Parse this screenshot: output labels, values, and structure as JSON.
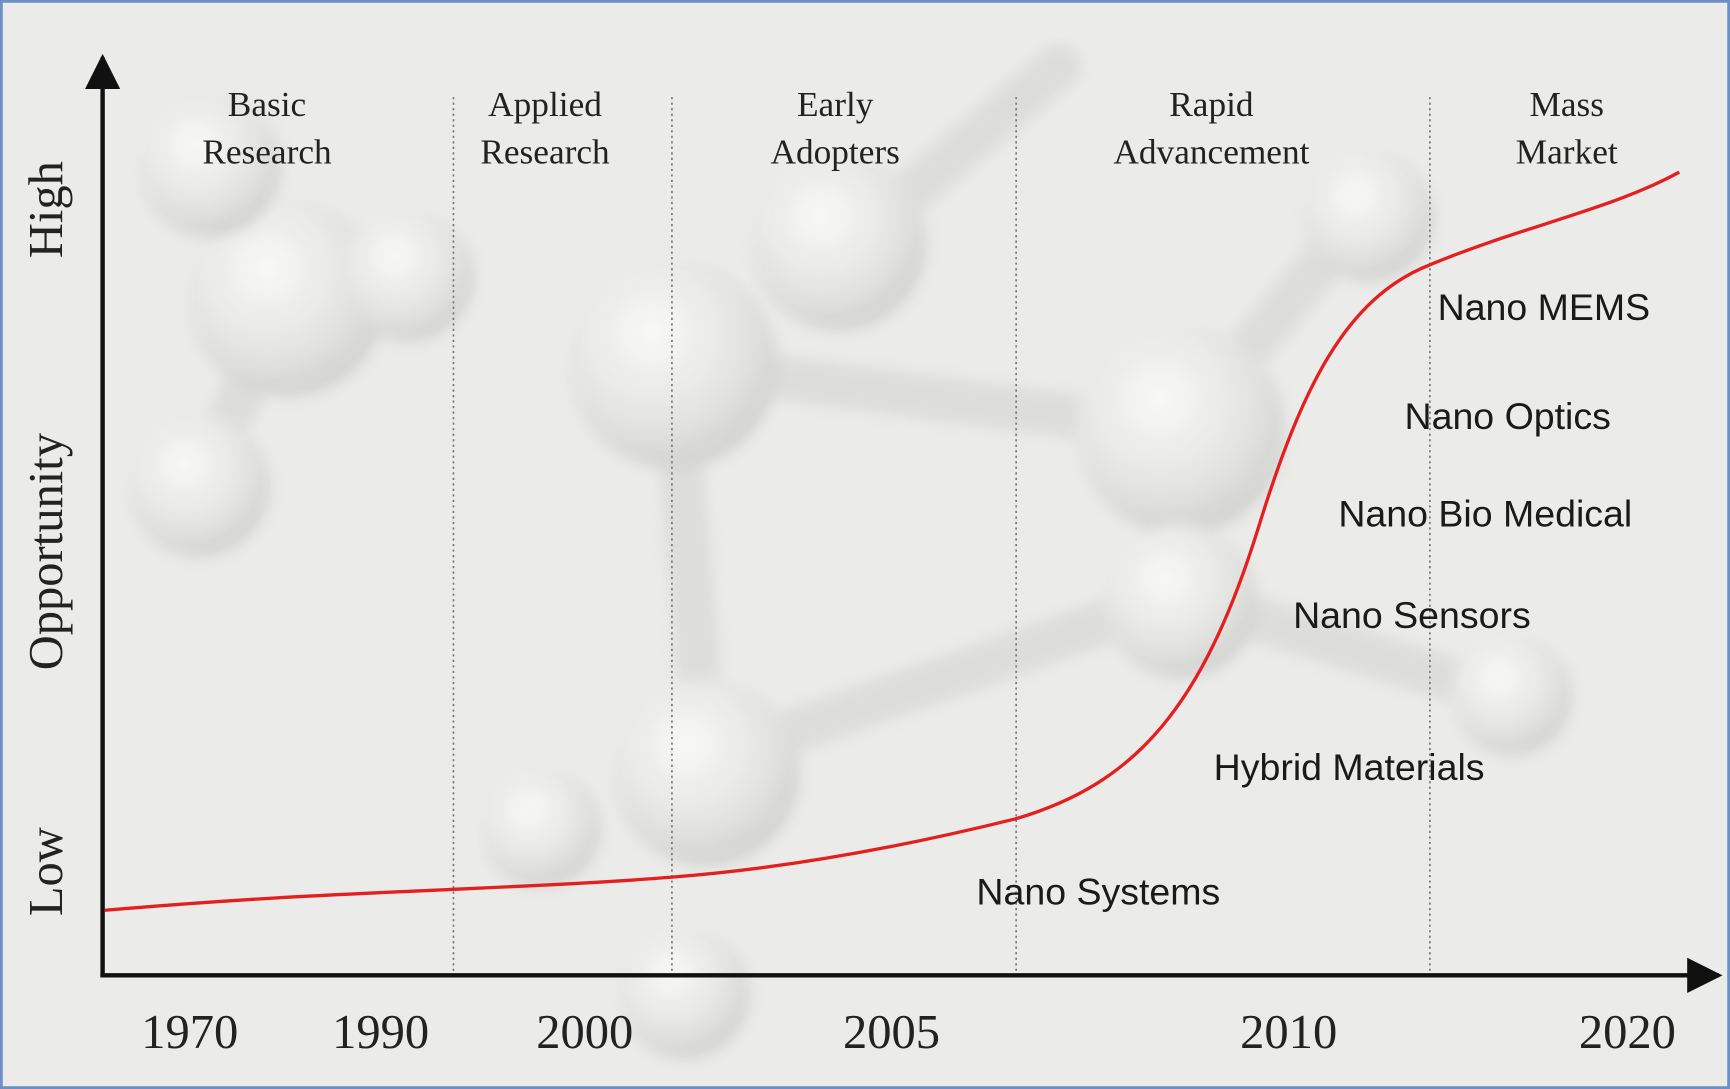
{
  "phases": [
    {
      "lines": [
        "Basic",
        "Research"
      ]
    },
    {
      "lines": [
        "Applied",
        "Research"
      ]
    },
    {
      "lines": [
        "Early",
        "Adopters"
      ]
    },
    {
      "lines": [
        "Rapid",
        "Advancement"
      ]
    },
    {
      "lines": [
        "Mass",
        "Market"
      ]
    }
  ],
  "x_axis": {
    "years": [
      "1970",
      "1990",
      "2000",
      "2005",
      "2010",
      "2020"
    ]
  },
  "y_axis": {
    "low": "Low",
    "label": "Opportunity",
    "high": "High"
  },
  "curve_labels": [
    "Nano MEMS",
    "Nano Optics",
    "Nano Bio Medical",
    "Nano Sensors",
    "Hybrid Materials",
    "Nano Systems"
  ]
}
